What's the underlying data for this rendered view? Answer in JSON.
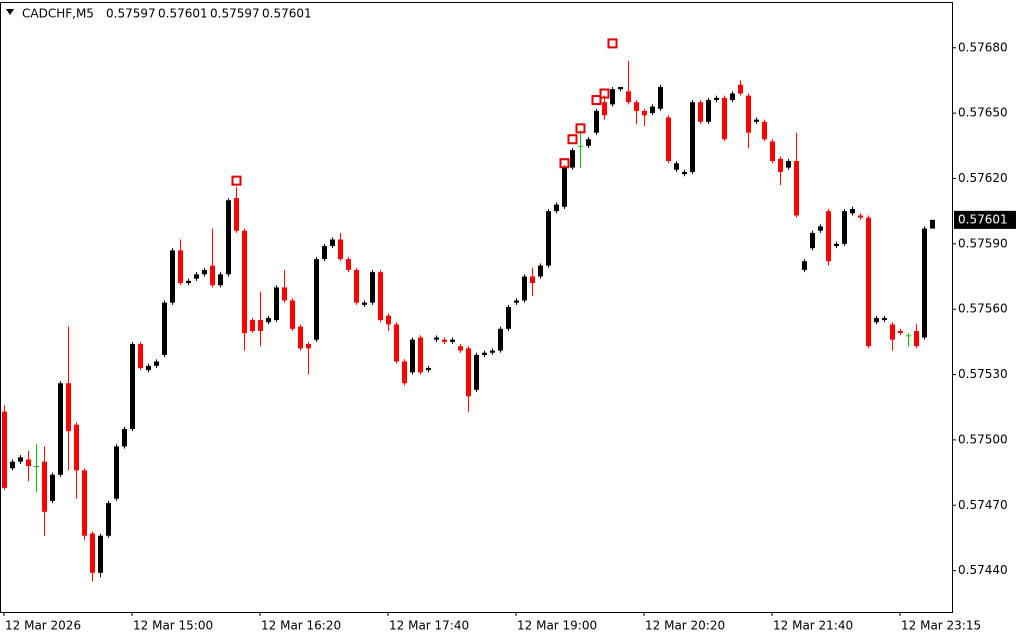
{
  "chart_data": {
    "type": "candlestick",
    "title": "CADCHF,M5",
    "header_values": [
      "0.57597",
      "0.57601",
      "0.57597",
      "0.57601"
    ],
    "up_color": "#000000",
    "down_color": "#ff0000",
    "doji_color": "#00c000",
    "marker_color": "#e00000",
    "ylim": [
      0.57421,
      0.57701
    ],
    "yticks": [
      {
        "value": 0.5744,
        "label": "0.57440"
      },
      {
        "value": 0.5747,
        "label": "0.57470"
      },
      {
        "value": 0.575,
        "label": "0.57500"
      },
      {
        "value": 0.5753,
        "label": "0.57530"
      },
      {
        "value": 0.5756,
        "label": "0.57560"
      },
      {
        "value": 0.5759,
        "label": "0.57590"
      },
      {
        "value": 0.5762,
        "label": "0.57620"
      },
      {
        "value": 0.5765,
        "label": "0.57650"
      },
      {
        "value": 0.5768,
        "label": "0.57680"
      }
    ],
    "last_price": {
      "value": 0.57601,
      "label": "0.57601"
    },
    "categories": [
      "12 Mar 2026",
      null,
      null,
      null,
      null,
      null,
      null,
      null,
      null,
      null,
      null,
      null,
      null,
      null,
      null,
      null,
      "12 Mar 15:00",
      null,
      null,
      null,
      null,
      null,
      null,
      null,
      null,
      null,
      null,
      null,
      null,
      null,
      null,
      null,
      "12 Mar 16:20",
      null,
      null,
      null,
      null,
      null,
      null,
      null,
      null,
      null,
      null,
      null,
      null,
      null,
      null,
      null,
      "12 Mar 17:40",
      null,
      null,
      null,
      null,
      null,
      null,
      null,
      null,
      null,
      null,
      null,
      null,
      null,
      null,
      null,
      "12 Mar 19:00",
      null,
      null,
      null,
      null,
      null,
      null,
      null,
      null,
      null,
      null,
      null,
      null,
      null,
      null,
      null,
      "12 Mar 20:20",
      null,
      null,
      null,
      null,
      null,
      null,
      null,
      null,
      null,
      null,
      null,
      null,
      null,
      null,
      null,
      "12 Mar 21:40",
      null,
      null,
      null,
      null,
      null,
      null,
      null,
      null,
      null,
      null,
      null,
      null,
      null,
      null,
      null,
      "12 Mar 23:15",
      null,
      null,
      null,
      null
    ],
    "open": [
      0.57513,
      0.57487,
      0.5749,
      0.57491,
      0.57488,
      0.5749,
      0.57472,
      0.57484,
      0.57526,
      0.57507,
      0.57486,
      0.57457,
      0.57439,
      0.57456,
      0.57473,
      0.57497,
      0.57505,
      0.57544,
      0.57532,
      0.57534,
      0.57539,
      0.57563,
      0.57587,
      0.57572,
      0.57574,
      0.57576,
      0.5758,
      0.57571,
      0.57576,
      0.57611,
      0.57596,
      0.57555,
      0.57555,
      0.57554,
      0.57555,
      0.5757,
      0.57564,
      0.57552,
      0.57544,
      0.57546,
      0.57583,
      0.57589,
      0.57592,
      0.57583,
      0.57578,
      0.57562,
      0.57563,
      0.57577,
      0.57557,
      0.57553,
      0.57536,
      0.57531,
      0.57547,
      0.57532,
      0.57546,
      0.57546,
      0.57545,
      0.57543,
      0.57542,
      0.57523,
      0.57539,
      0.5754,
      0.57541,
      0.57551,
      0.57563,
      0.57564,
      0.57575,
      0.57575,
      0.5758,
      0.57605,
      0.57607,
      0.57625,
      0.57635,
      0.57635,
      0.57641,
      0.57655,
      0.57654,
      0.57661,
      0.5766,
      0.57655,
      0.57651,
      0.5765,
      0.57652,
      0.57648,
      0.57624,
      0.57622,
      0.57623,
      0.57655,
      0.57646,
      0.57656,
      0.57657,
      0.57656,
      0.57663,
      0.57658,
      0.57646,
      0.57646,
      0.57637,
      0.57629,
      0.57625,
      0.57628,
      0.57578,
      0.57588,
      0.57596,
      0.57605,
      0.57589,
      0.5759,
      0.57604,
      0.57603,
      0.57602,
      0.57554,
      0.57555,
      0.57553,
      0.5755,
      0.57548,
      0.5755,
      0.57547,
      0.57597
    ],
    "high": [
      0.57516,
      0.57491,
      0.57493,
      0.57495,
      0.57498,
      0.57497,
      0.57485,
      0.57527,
      0.57552,
      0.57508,
      0.57487,
      0.57458,
      0.57457,
      0.57472,
      0.57498,
      0.57506,
      0.57545,
      0.57545,
      0.57535,
      0.57537,
      0.57564,
      0.57588,
      0.57592,
      0.57574,
      0.57577,
      0.57579,
      0.57597,
      0.57577,
      0.57611,
      0.57616,
      0.57597,
      0.57556,
      0.57568,
      0.57557,
      0.57571,
      0.57578,
      0.57565,
      0.57553,
      0.57545,
      0.57584,
      0.5759,
      0.57593,
      0.57595,
      0.57584,
      0.57579,
      0.57564,
      0.57578,
      0.57578,
      0.57558,
      0.57554,
      0.57537,
      0.57547,
      0.57548,
      0.57534,
      0.57548,
      0.57547,
      0.57547,
      0.57544,
      0.57543,
      0.5754,
      0.57541,
      0.57542,
      0.57552,
      0.57562,
      0.57565,
      0.57576,
      0.57579,
      0.57581,
      0.57606,
      0.57609,
      0.57626,
      0.57634,
      0.57642,
      0.57639,
      0.57652,
      0.57658,
      0.57662,
      0.57662,
      0.57674,
      0.57656,
      0.57652,
      0.57654,
      0.57663,
      0.57649,
      0.57628,
      0.57624,
      0.57656,
      0.57656,
      0.57657,
      0.57658,
      0.57658,
      0.5766,
      0.57665,
      0.57659,
      0.57648,
      0.57647,
      0.57638,
      0.5763,
      0.57629,
      0.57641,
      0.57583,
      0.57596,
      0.57599,
      0.57606,
      0.57591,
      0.57606,
      0.57607,
      0.57604,
      0.57603,
      0.57557,
      0.57557,
      0.57554,
      0.57551,
      0.57549,
      0.57553,
      0.57598,
      0.57601
    ],
    "low": [
      0.57477,
      0.57486,
      0.57489,
      0.57481,
      0.57476,
      0.57456,
      0.57471,
      0.57483,
      0.57486,
      0.57473,
      0.57454,
      0.57435,
      0.57437,
      0.57455,
      0.57472,
      0.57496,
      0.57504,
      0.57532,
      0.57531,
      0.57533,
      0.57538,
      0.57562,
      0.57571,
      0.57571,
      0.57573,
      0.57575,
      0.5757,
      0.5757,
      0.57575,
      0.57595,
      0.57541,
      0.57549,
      0.57543,
      0.57553,
      0.57554,
      0.57563,
      0.5755,
      0.57541,
      0.5753,
      0.57545,
      0.57582,
      0.57588,
      0.57582,
      0.57577,
      0.57562,
      0.57561,
      0.57562,
      0.57554,
      0.5755,
      0.57535,
      0.57525,
      0.5753,
      0.5753,
      0.57531,
      0.57545,
      0.57544,
      0.57544,
      0.5754,
      0.57513,
      0.57522,
      0.57538,
      0.57539,
      0.5754,
      0.5755,
      0.57562,
      0.57563,
      0.57566,
      0.57574,
      0.57579,
      0.57604,
      0.57606,
      0.57624,
      0.57625,
      0.57634,
      0.5764,
      0.57647,
      0.57653,
      0.5766,
      0.57654,
      0.57645,
      0.57644,
      0.57649,
      0.57651,
      0.57627,
      0.57623,
      0.57621,
      0.57622,
      0.57645,
      0.57645,
      0.57655,
      0.57637,
      0.57655,
      0.57658,
      0.57634,
      0.57645,
      0.57637,
      0.57627,
      0.57617,
      0.57624,
      0.57602,
      0.57577,
      0.57587,
      0.57595,
      0.5758,
      0.57588,
      0.57589,
      0.57603,
      0.57601,
      0.57542,
      0.57553,
      0.57554,
      0.57541,
      0.57548,
      0.57543,
      0.57542,
      0.57546,
      0.57597
    ],
    "close": [
      0.57478,
      0.5749,
      0.57492,
      0.57488,
      0.57488,
      0.57467,
      0.57484,
      0.57526,
      0.57504,
      0.57486,
      0.57456,
      0.57439,
      0.57456,
      0.57471,
      0.57497,
      0.57505,
      0.57544,
      0.57533,
      0.57534,
      0.57536,
      0.57563,
      0.57587,
      0.57572,
      0.57573,
      0.57576,
      0.57578,
      0.57571,
      0.57576,
      0.5761,
      0.57596,
      0.57549,
      0.5755,
      0.5755,
      0.57556,
      0.5757,
      0.57564,
      0.57551,
      0.57542,
      0.57542,
      0.57583,
      0.57589,
      0.57592,
      0.57583,
      0.57578,
      0.57563,
      0.57563,
      0.57577,
      0.57555,
      0.57553,
      0.57536,
      0.57526,
      0.57546,
      0.57531,
      0.57533,
      0.57547,
      0.57545,
      0.57546,
      0.57541,
      0.5752,
      0.57539,
      0.5754,
      0.57541,
      0.57551,
      0.57561,
      0.57564,
      0.57575,
      0.57572,
      0.5758,
      0.57605,
      0.57608,
      0.57625,
      0.57633,
      0.57635,
      0.57638,
      0.57651,
      0.57649,
      0.57661,
      0.57662,
      0.57655,
      0.57651,
      0.57649,
      0.57653,
      0.57662,
      0.57628,
      0.57627,
      0.57623,
      0.57655,
      0.57646,
      0.57656,
      0.57657,
      0.57638,
      0.57659,
      0.57659,
      0.57641,
      0.57647,
      0.57638,
      0.57628,
      0.57623,
      0.57628,
      0.57603,
      0.57582,
      0.57595,
      0.57598,
      0.57582,
      0.5759,
      0.57605,
      0.57606,
      0.57602,
      0.57543,
      0.57556,
      0.57556,
      0.57546,
      0.57549,
      0.57548,
      0.57543,
      0.57597,
      0.57601
    ],
    "markers": [
      null,
      null,
      null,
      null,
      null,
      null,
      null,
      null,
      null,
      null,
      null,
      null,
      null,
      null,
      null,
      null,
      null,
      null,
      null,
      null,
      null,
      null,
      null,
      null,
      null,
      null,
      null,
      null,
      null,
      0.57619,
      null,
      null,
      null,
      null,
      null,
      null,
      null,
      null,
      null,
      null,
      null,
      null,
      null,
      null,
      null,
      null,
      null,
      null,
      null,
      null,
      null,
      null,
      null,
      null,
      null,
      null,
      null,
      null,
      null,
      null,
      null,
      null,
      null,
      null,
      null,
      null,
      null,
      null,
      null,
      null,
      0.57627,
      0.57638,
      0.57643,
      null,
      0.57656,
      0.57659,
      0.57682,
      null,
      null,
      null,
      null,
      null,
      null,
      null,
      null,
      null,
      null,
      null,
      null,
      null,
      null,
      null,
      null,
      null,
      null,
      null,
      null,
      null,
      null,
      null,
      null,
      null,
      null,
      null,
      null,
      null,
      null,
      null,
      null,
      null,
      null,
      null,
      null,
      null,
      null,
      null,
      null,
      null,
      null,
      null,
      null
    ]
  }
}
